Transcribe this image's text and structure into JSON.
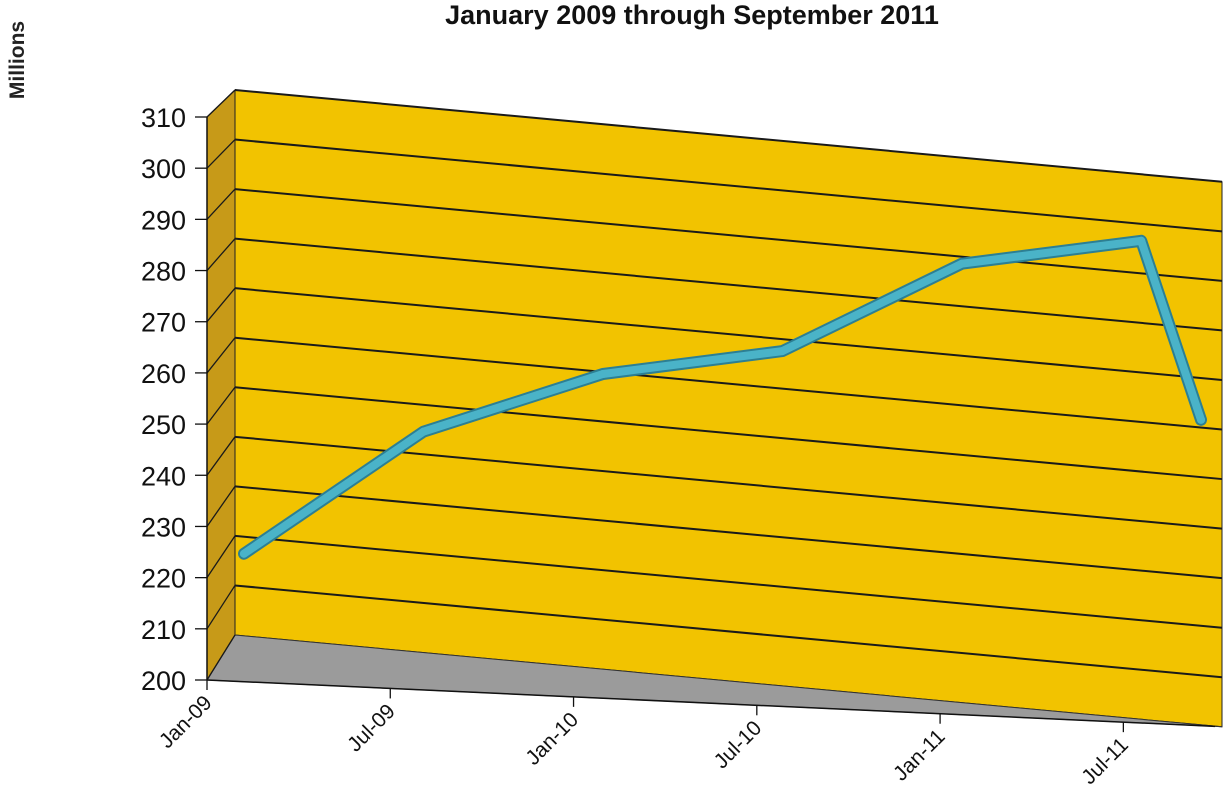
{
  "chart_data": {
    "type": "line",
    "title": "January 2009 through September 2011",
    "ylabel": "Millions",
    "xlabel": "",
    "ylim": [
      200,
      310
    ],
    "yticks": [
      "310",
      "300",
      "290",
      "280",
      "270",
      "260",
      "250",
      "240",
      "230",
      "220",
      "210",
      "200"
    ],
    "xtick_labels": [
      "Jan-09",
      "Jul-09",
      "Jan-10",
      "Jul-10",
      "Jan-11",
      "Jul-11"
    ],
    "x": [
      "Jan-09",
      "Jul-09",
      "Jan-10",
      "Jul-10",
      "Jan-11",
      "Jul-11",
      "Sep-11"
    ],
    "values": [
      219,
      247,
      262,
      270,
      291,
      299,
      264
    ],
    "grid": true,
    "style": "3d-line",
    "colors": {
      "wall": "#f2c300",
      "side_wall": "#c79a18",
      "floor": "#9b9b9b",
      "line": "#4ab3c8",
      "gridline": "#1a1a1a"
    }
  }
}
